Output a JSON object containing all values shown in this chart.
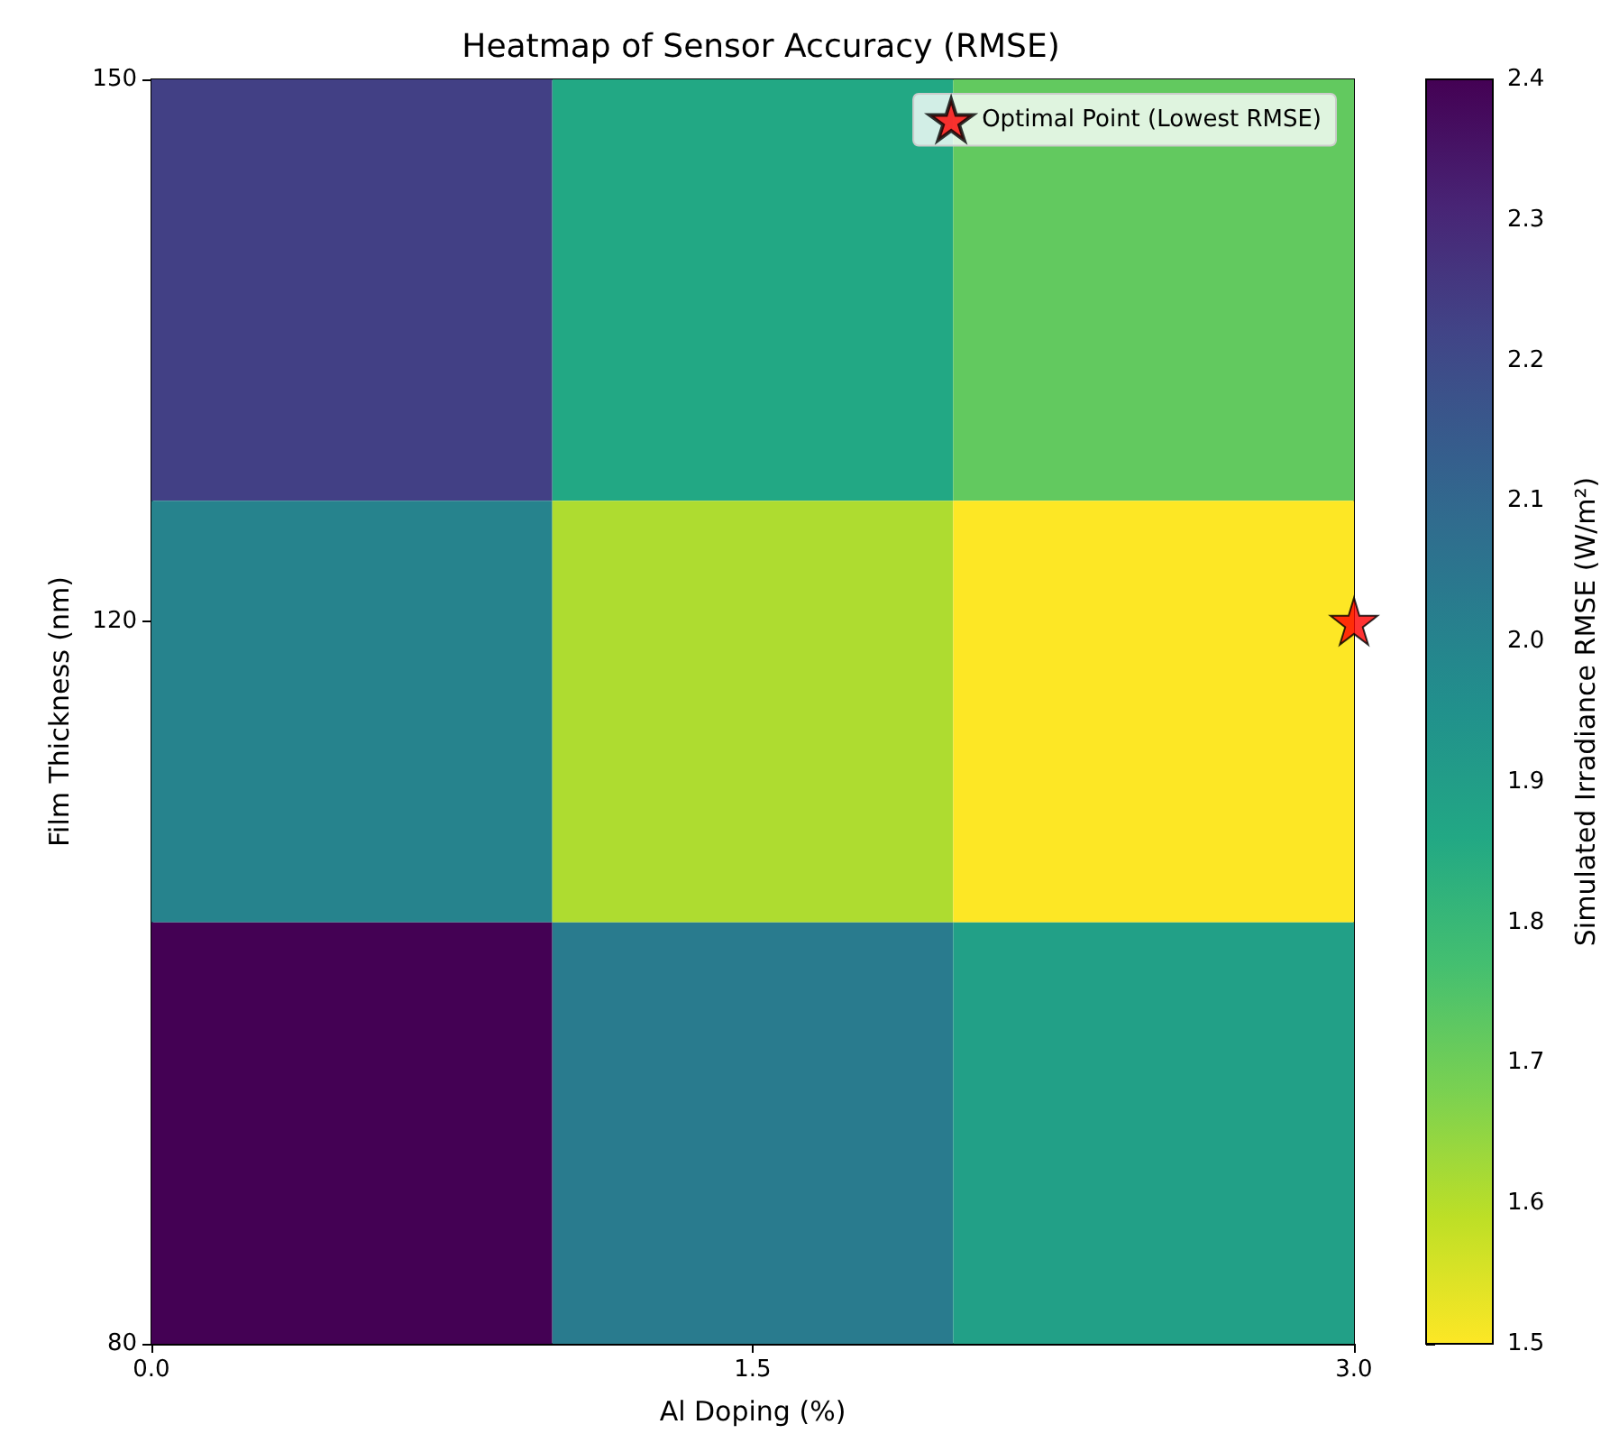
{
  "chart_data": {
    "type": "heatmap",
    "title": "Heatmap of Sensor Accuracy (RMSE)",
    "xlabel": "Al Doping (%)",
    "ylabel": "Film Thickness (nm)",
    "clabel": "Simulated Irradiance RMSE (W/m²)",
    "cells": [
      [
        2.23,
        1.86,
        1.72
      ],
      [
        2.0,
        1.61,
        1.5
      ],
      [
        2.4,
        2.03,
        1.89
      ]
    ],
    "xlim": [
      0,
      3
    ],
    "xticks": [
      {
        "value": 0,
        "label": "0.0"
      },
      {
        "value": 1.5,
        "label": "1.5"
      },
      {
        "value": 3,
        "label": "3.0"
      }
    ],
    "ylim": [
      80,
      150
    ],
    "yticks": [
      80,
      120,
      150
    ],
    "clim": [
      1.5,
      2.4
    ],
    "cticks": [
      1.5,
      1.6,
      1.7,
      1.8,
      1.9,
      {
        "value": 2,
        "label": "2.0"
      },
      2.1,
      2.2,
      2.3,
      2.4
    ],
    "series": [
      {
        "type": "scatter",
        "name": "Optimal Point (Lowest RMSE)",
        "color": "#ff0000",
        "marker": "star",
        "x": [
          3
        ],
        "values": [
          120
        ]
      }
    ],
    "legend": "top right"
  }
}
